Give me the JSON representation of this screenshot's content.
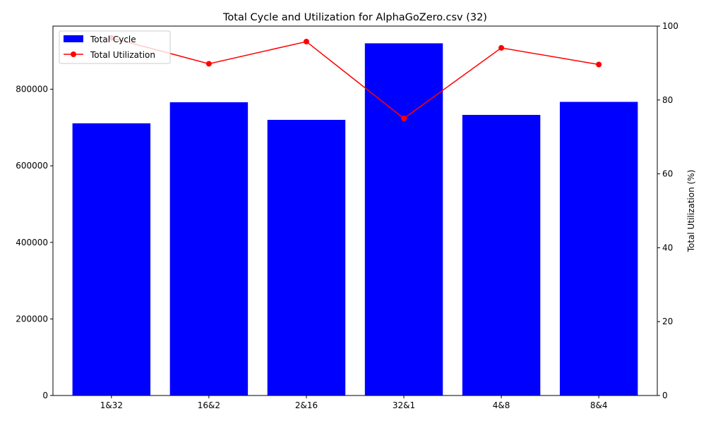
{
  "chart_data": {
    "type": "bar+line",
    "title": "Total Cycle and Utilization for AlphaGoZero.csv (32)",
    "categories": [
      "1&32",
      "16&2",
      "2&16",
      "32&1",
      "4&8",
      "8&4"
    ],
    "bar_series": {
      "name": "Total Cycle",
      "color": "#0000ff",
      "values": [
        711000,
        766000,
        720000,
        920000,
        733000,
        767000
      ]
    },
    "line_series": {
      "name": "Total Utilization",
      "color": "#ff0000",
      "values": [
        96.8,
        89.8,
        95.8,
        75.0,
        94.1,
        89.6
      ]
    },
    "y_left": {
      "label": "",
      "lim": [
        0,
        965000
      ],
      "ticks": [
        0,
        200000,
        400000,
        600000,
        800000
      ],
      "tick_labels": [
        "0",
        "200000",
        "400000",
        "600000",
        "800000"
      ]
    },
    "y_right": {
      "label": "Total Utilization (%)",
      "lim": [
        0,
        100
      ],
      "ticks": [
        0,
        20,
        40,
        60,
        80,
        100
      ],
      "tick_labels": [
        "0",
        "20",
        "40",
        "60",
        "80",
        "100"
      ]
    },
    "legend_position": "top-left",
    "grid": false
  }
}
